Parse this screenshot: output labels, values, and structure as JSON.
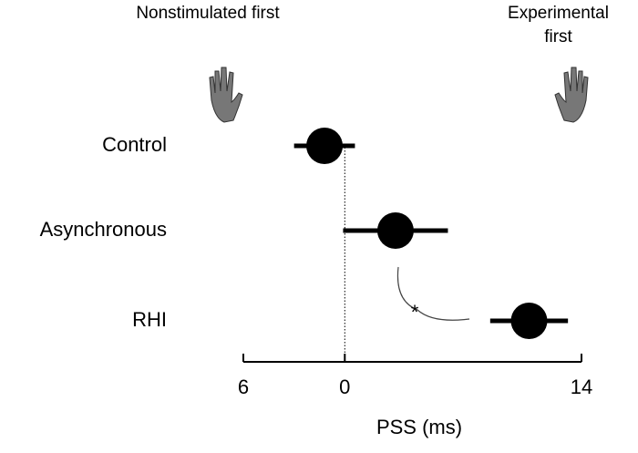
{
  "chart_data": {
    "type": "dot",
    "header_left": "Nonstimulated first",
    "header_right": "Experimental first",
    "xlabel": "PSS (ms)",
    "annotation": "*",
    "categories": [
      "Control",
      "Asynchronous",
      "RHI"
    ],
    "values": [
      -1.2,
      3.0,
      10.9
    ],
    "errors": [
      1.8,
      3.1,
      2.3
    ],
    "color": "#000000",
    "xlim": [
      -6,
      14
    ],
    "xticks": [
      {
        "value": -6,
        "label": "6"
      },
      0,
      14
    ]
  }
}
